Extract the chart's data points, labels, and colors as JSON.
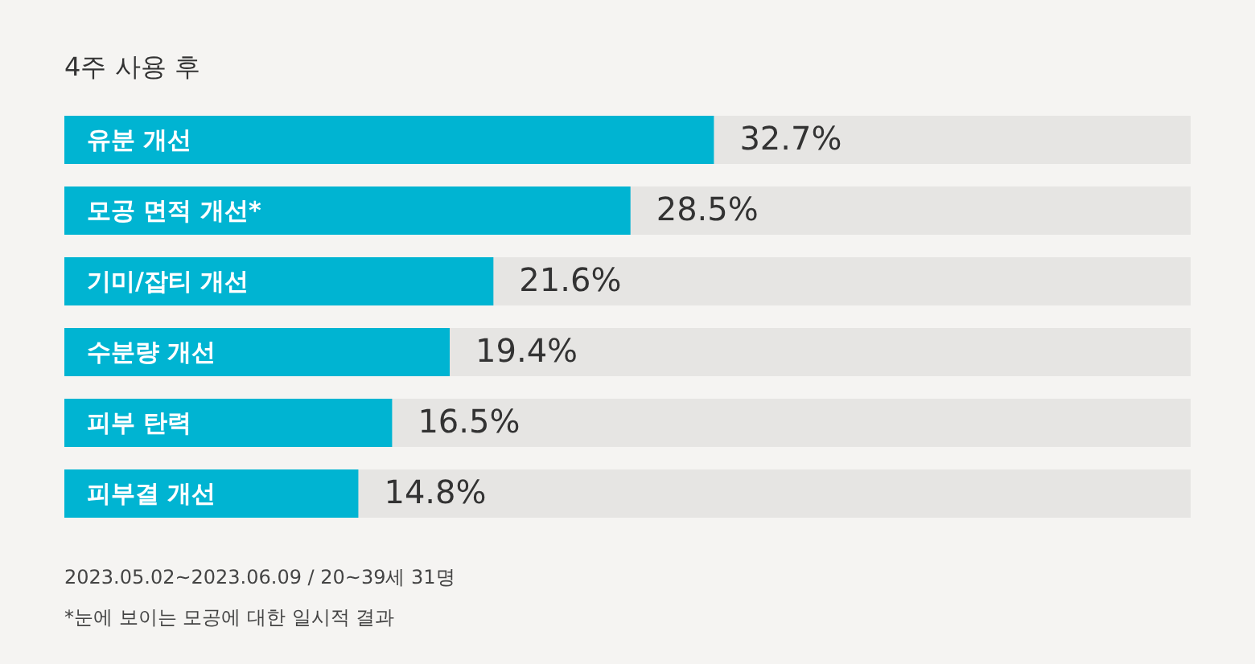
{
  "chart_data": {
    "type": "bar",
    "orientation": "horizontal",
    "title": "4주  사용 후",
    "categories": [
      "유분 개선",
      "모공 면적 개선*",
      "기미/잡티 개선",
      "수분량 개선",
      "피부 탄력",
      "피부결 개선"
    ],
    "values": [
      32.7,
      28.5,
      21.6,
      19.4,
      16.5,
      14.8
    ],
    "value_labels": [
      "32.7%",
      "28.5%",
      "21.6%",
      "19.4%",
      "16.5%",
      "14.8%"
    ],
    "color": "#00b4d2",
    "xlim": [
      0,
      56.7
    ],
    "tick_labels": false,
    "annotations": [
      "2023.05.02~2023.06.09 / 20~39세 31명",
      "*눈에 보이는 모공에 대한 일시적 결과"
    ]
  }
}
